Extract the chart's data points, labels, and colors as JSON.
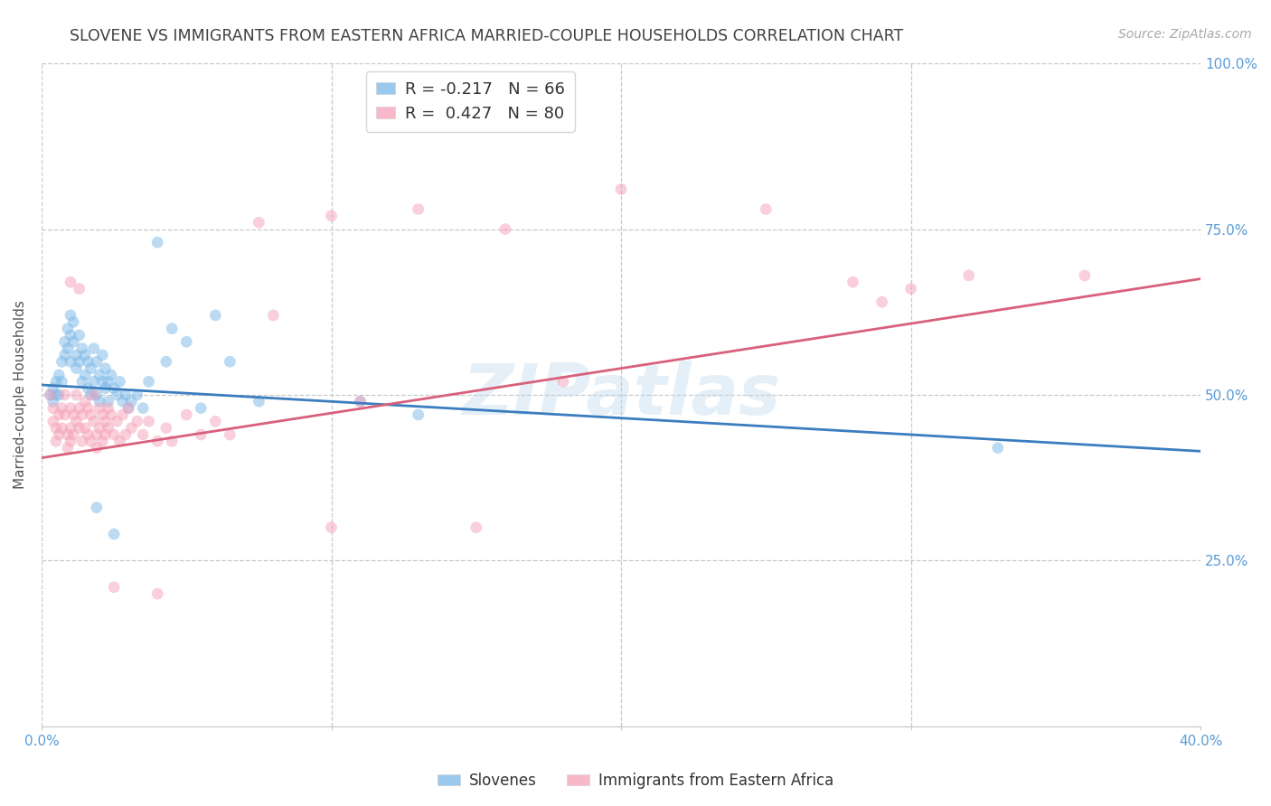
{
  "title": "SLOVENE VS IMMIGRANTS FROM EASTERN AFRICA MARRIED-COUPLE HOUSEHOLDS CORRELATION CHART",
  "source": "Source: ZipAtlas.com",
  "ylabel": "Married-couple Households",
  "xlim": [
    0.0,
    0.4
  ],
  "ylim": [
    0.0,
    1.0
  ],
  "yticks": [
    0.0,
    0.25,
    0.5,
    0.75,
    1.0
  ],
  "ytick_labels": [
    "",
    "25.0%",
    "50.0%",
    "75.0%",
    "100.0%"
  ],
  "xticks": [
    0.0,
    0.1,
    0.2,
    0.3,
    0.4
  ],
  "xtick_labels": [
    "0.0%",
    "",
    "",
    "",
    "40.0%"
  ],
  "background_color": "#ffffff",
  "grid_color": "#c8c8c8",
  "title_color": "#404040",
  "axis_label_color": "#555555",
  "tick_color": "#5b9bd5",
  "watermark": "ZIPatlas",
  "legend_blue": "R = -0.217   N = 66",
  "legend_pink": "R =  0.427   N = 80",
  "blue_scatter": [
    [
      0.003,
      0.5
    ],
    [
      0.004,
      0.51
    ],
    [
      0.004,
      0.49
    ],
    [
      0.005,
      0.52
    ],
    [
      0.005,
      0.5
    ],
    [
      0.006,
      0.53
    ],
    [
      0.006,
      0.5
    ],
    [
      0.007,
      0.55
    ],
    [
      0.007,
      0.52
    ],
    [
      0.008,
      0.58
    ],
    [
      0.008,
      0.56
    ],
    [
      0.009,
      0.6
    ],
    [
      0.009,
      0.57
    ],
    [
      0.01,
      0.62
    ],
    [
      0.01,
      0.59
    ],
    [
      0.01,
      0.55
    ],
    [
      0.011,
      0.61
    ],
    [
      0.011,
      0.58
    ],
    [
      0.012,
      0.56
    ],
    [
      0.012,
      0.54
    ],
    [
      0.013,
      0.59
    ],
    [
      0.013,
      0.55
    ],
    [
      0.014,
      0.57
    ],
    [
      0.014,
      0.52
    ],
    [
      0.015,
      0.56
    ],
    [
      0.015,
      0.53
    ],
    [
      0.016,
      0.55
    ],
    [
      0.016,
      0.51
    ],
    [
      0.017,
      0.54
    ],
    [
      0.017,
      0.5
    ],
    [
      0.018,
      0.57
    ],
    [
      0.018,
      0.52
    ],
    [
      0.019,
      0.55
    ],
    [
      0.019,
      0.5
    ],
    [
      0.02,
      0.53
    ],
    [
      0.02,
      0.49
    ],
    [
      0.021,
      0.56
    ],
    [
      0.021,
      0.52
    ],
    [
      0.022,
      0.54
    ],
    [
      0.022,
      0.51
    ],
    [
      0.023,
      0.52
    ],
    [
      0.023,
      0.49
    ],
    [
      0.024,
      0.53
    ],
    [
      0.025,
      0.51
    ],
    [
      0.026,
      0.5
    ],
    [
      0.027,
      0.52
    ],
    [
      0.028,
      0.49
    ],
    [
      0.029,
      0.5
    ],
    [
      0.03,
      0.48
    ],
    [
      0.031,
      0.49
    ],
    [
      0.033,
      0.5
    ],
    [
      0.035,
      0.48
    ],
    [
      0.037,
      0.52
    ],
    [
      0.04,
      0.73
    ],
    [
      0.043,
      0.55
    ],
    [
      0.045,
      0.6
    ],
    [
      0.05,
      0.58
    ],
    [
      0.055,
      0.48
    ],
    [
      0.06,
      0.62
    ],
    [
      0.065,
      0.55
    ],
    [
      0.075,
      0.49
    ],
    [
      0.11,
      0.49
    ],
    [
      0.019,
      0.33
    ],
    [
      0.025,
      0.29
    ],
    [
      0.13,
      0.47
    ],
    [
      0.33,
      0.42
    ]
  ],
  "pink_scatter": [
    [
      0.003,
      0.5
    ],
    [
      0.004,
      0.46
    ],
    [
      0.004,
      0.48
    ],
    [
      0.005,
      0.43
    ],
    [
      0.005,
      0.45
    ],
    [
      0.006,
      0.47
    ],
    [
      0.006,
      0.44
    ],
    [
      0.007,
      0.48
    ],
    [
      0.007,
      0.45
    ],
    [
      0.008,
      0.5
    ],
    [
      0.008,
      0.47
    ],
    [
      0.009,
      0.44
    ],
    [
      0.009,
      0.42
    ],
    [
      0.01,
      0.48
    ],
    [
      0.01,
      0.45
    ],
    [
      0.01,
      0.43
    ],
    [
      0.011,
      0.47
    ],
    [
      0.011,
      0.44
    ],
    [
      0.012,
      0.5
    ],
    [
      0.012,
      0.46
    ],
    [
      0.013,
      0.48
    ],
    [
      0.013,
      0.45
    ],
    [
      0.014,
      0.47
    ],
    [
      0.014,
      0.43
    ],
    [
      0.015,
      0.49
    ],
    [
      0.015,
      0.45
    ],
    [
      0.016,
      0.48
    ],
    [
      0.016,
      0.44
    ],
    [
      0.017,
      0.47
    ],
    [
      0.017,
      0.43
    ],
    [
      0.018,
      0.5
    ],
    [
      0.018,
      0.46
    ],
    [
      0.019,
      0.44
    ],
    [
      0.019,
      0.42
    ],
    [
      0.02,
      0.48
    ],
    [
      0.02,
      0.45
    ],
    [
      0.021,
      0.47
    ],
    [
      0.021,
      0.43
    ],
    [
      0.022,
      0.46
    ],
    [
      0.022,
      0.44
    ],
    [
      0.023,
      0.48
    ],
    [
      0.023,
      0.45
    ],
    [
      0.024,
      0.47
    ],
    [
      0.025,
      0.44
    ],
    [
      0.026,
      0.46
    ],
    [
      0.027,
      0.43
    ],
    [
      0.028,
      0.47
    ],
    [
      0.029,
      0.44
    ],
    [
      0.03,
      0.48
    ],
    [
      0.031,
      0.45
    ],
    [
      0.033,
      0.46
    ],
    [
      0.035,
      0.44
    ],
    [
      0.037,
      0.46
    ],
    [
      0.04,
      0.43
    ],
    [
      0.043,
      0.45
    ],
    [
      0.045,
      0.43
    ],
    [
      0.05,
      0.47
    ],
    [
      0.055,
      0.44
    ],
    [
      0.06,
      0.46
    ],
    [
      0.065,
      0.44
    ],
    [
      0.01,
      0.67
    ],
    [
      0.013,
      0.66
    ],
    [
      0.075,
      0.76
    ],
    [
      0.1,
      0.77
    ],
    [
      0.13,
      0.78
    ],
    [
      0.16,
      0.75
    ],
    [
      0.2,
      0.81
    ],
    [
      0.25,
      0.78
    ],
    [
      0.025,
      0.21
    ],
    [
      0.04,
      0.2
    ],
    [
      0.1,
      0.3
    ],
    [
      0.15,
      0.3
    ],
    [
      0.08,
      0.62
    ],
    [
      0.11,
      0.49
    ],
    [
      0.18,
      0.52
    ],
    [
      0.28,
      0.67
    ],
    [
      0.29,
      0.64
    ],
    [
      0.3,
      0.66
    ],
    [
      0.32,
      0.68
    ],
    [
      0.36,
      0.68
    ]
  ],
  "blue_line": {
    "x0": 0.0,
    "y0": 0.515,
    "x1": 0.4,
    "y1": 0.415
  },
  "pink_line": {
    "x0": 0.0,
    "y0": 0.405,
    "x1": 0.4,
    "y1": 0.675
  },
  "blue_color": "#7ab8e8",
  "pink_color": "#f5a0b8",
  "blue_line_color": "#3b7dbf",
  "pink_line_color": "#d9607a",
  "scatter_size": 85,
  "scatter_alpha": 0.5,
  "title_fontsize": 12.5,
  "axis_fontsize": 11,
  "tick_fontsize": 11,
  "source_fontsize": 10
}
